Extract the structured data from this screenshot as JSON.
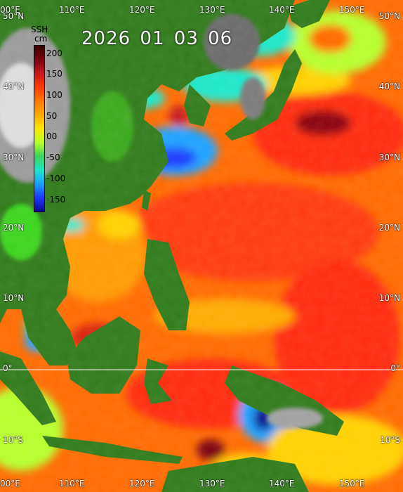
{
  "title": "2026 01 03 06",
  "colorbar": {
    "title": "SSH",
    "unit": "cm",
    "ticks": [
      "200",
      "150",
      "100",
      "50",
      "00",
      "-50",
      "-100",
      "-150"
    ],
    "colors": [
      "#3a0000",
      "#7a0010",
      "#c41a1a",
      "#ff3a00",
      "#ff7a00",
      "#ffaa00",
      "#ffe600",
      "#b6ff2a",
      "#3ad45a",
      "#1ee6c8",
      "#1aa0ff",
      "#1a3aff",
      "#0a0a8c"
    ]
  },
  "axes": {
    "lon_top": [
      "00°E",
      "110°E",
      "120°E",
      "130°E",
      "140°E",
      "150°E"
    ],
    "lon_bottom": [
      "00°E",
      "110°E",
      "120°E",
      "130°E",
      "140°E",
      "150°E"
    ],
    "lat_left": [
      "50°N",
      "40°N",
      "30°N",
      "20°N",
      "10°N",
      "0°",
      "10°S"
    ],
    "lat_right": [
      "50°N",
      "40°N",
      "30°N",
      "20°N",
      "10°N",
      "0°",
      "10°S"
    ]
  }
}
